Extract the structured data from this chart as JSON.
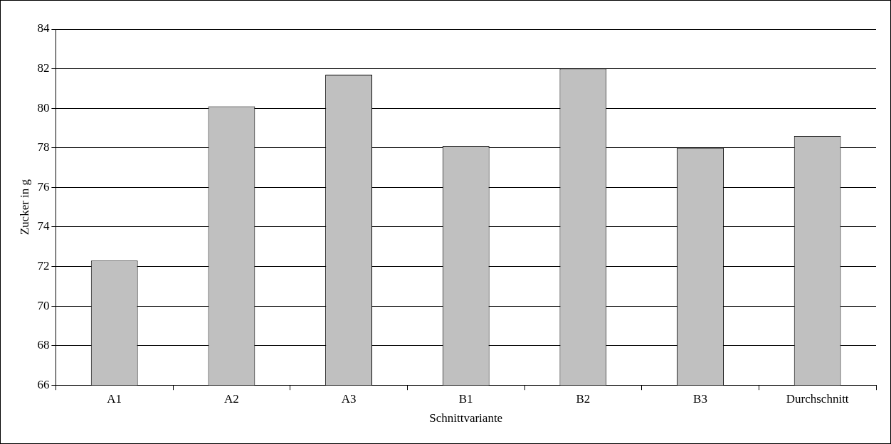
{
  "chart_data": {
    "type": "bar",
    "xlabel": "Schnittvariante",
    "ylabel": "Zucker in g",
    "categories": [
      "A1",
      "A2",
      "A3",
      "B1",
      "B2",
      "B3",
      "Durchschnitt"
    ],
    "values": [
      72.3,
      80.1,
      81.7,
      78.1,
      82.0,
      78.0,
      78.6
    ],
    "color": "#c0c0c0",
    "ylim": [
      66,
      84
    ],
    "yticks": [
      66,
      68,
      70,
      72,
      74,
      76,
      78,
      80,
      82,
      84
    ],
    "grid": "y",
    "legend": false
  }
}
